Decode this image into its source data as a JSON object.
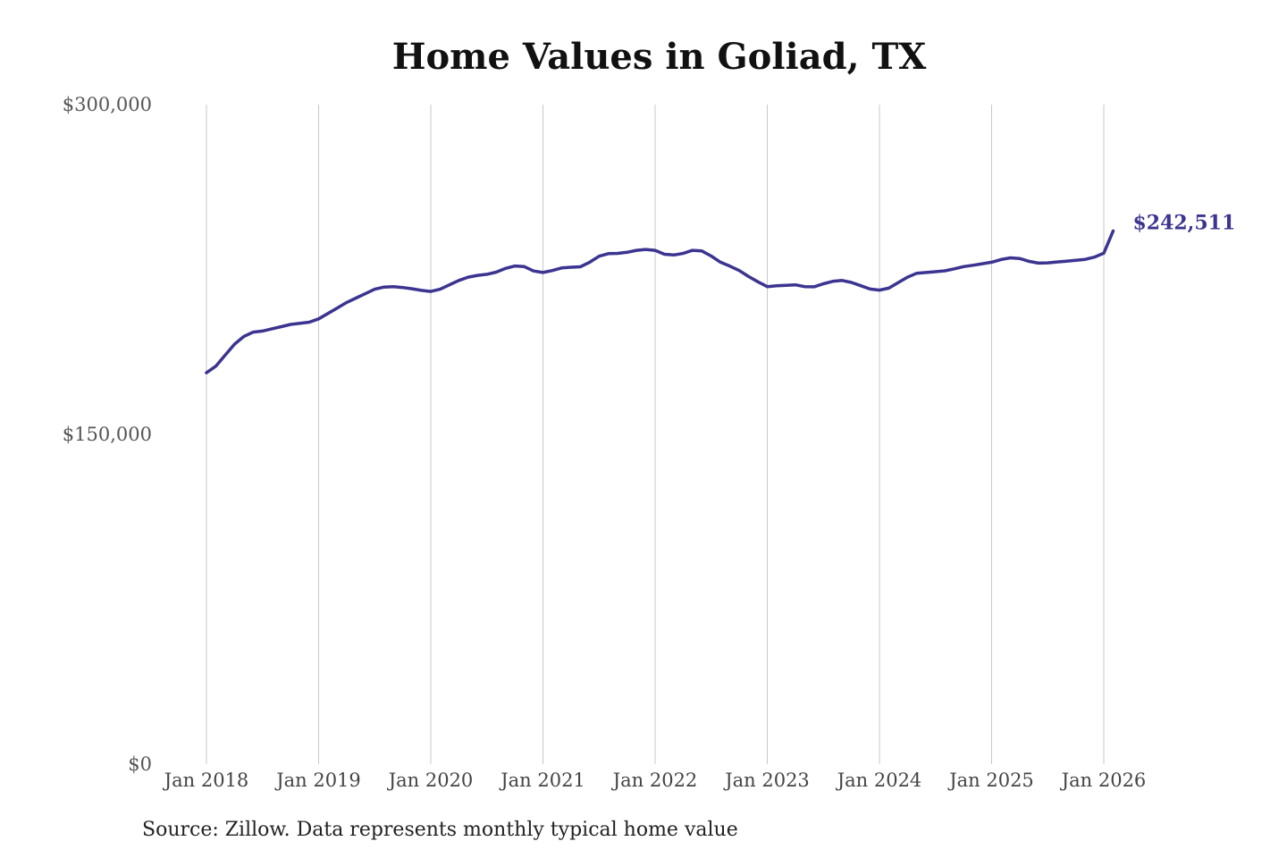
{
  "chart_data": {
    "type": "line",
    "title": "Home Values in Goliad, TX",
    "xlabel": "",
    "ylabel": "",
    "ylim": [
      0,
      300000
    ],
    "yticks": [
      0,
      150000,
      300000
    ],
    "ytick_labels": [
      "$0",
      "$150,000",
      "$300,000"
    ],
    "xlim": [
      "2018-01",
      "2026-02"
    ],
    "xticks": [
      "2018-01",
      "2019-01",
      "2020-01",
      "2021-01",
      "2022-01",
      "2023-01",
      "2024-01",
      "2025-01",
      "2026-01"
    ],
    "xtick_labels": [
      "Jan 2018",
      "Jan 2019",
      "Jan 2020",
      "Jan 2021",
      "Jan 2022",
      "Jan 2023",
      "Jan 2024",
      "Jan 2025",
      "Jan 2026"
    ],
    "grid": "vertical",
    "series": [
      {
        "color": "#3b3490",
        "end_label": "$242,511",
        "points": [
          [
            "2018-01",
            178000
          ],
          [
            "2018-02",
            181000
          ],
          [
            "2018-03",
            186000
          ],
          [
            "2018-04",
            191000
          ],
          [
            "2018-05",
            194500
          ],
          [
            "2018-06",
            196500
          ],
          [
            "2018-07",
            197000
          ],
          [
            "2018-08",
            198000
          ],
          [
            "2018-09",
            199000
          ],
          [
            "2018-10",
            200000
          ],
          [
            "2018-11",
            200500
          ],
          [
            "2018-12",
            201000
          ],
          [
            "2019-01",
            202500
          ],
          [
            "2019-02",
            205000
          ],
          [
            "2019-03",
            207500
          ],
          [
            "2019-04",
            210000
          ],
          [
            "2019-05",
            212000
          ],
          [
            "2019-06",
            214000
          ],
          [
            "2019-07",
            216000
          ],
          [
            "2019-08",
            217000
          ],
          [
            "2019-09",
            217200
          ],
          [
            "2019-10",
            216800
          ],
          [
            "2019-11",
            216200
          ],
          [
            "2019-12",
            215500
          ],
          [
            "2020-01",
            215000
          ],
          [
            "2020-02",
            216000
          ],
          [
            "2020-03",
            218000
          ],
          [
            "2020-04",
            220000
          ],
          [
            "2020-05",
            221500
          ],
          [
            "2020-06",
            222300
          ],
          [
            "2020-07",
            222800
          ],
          [
            "2020-08",
            223800
          ],
          [
            "2020-09",
            225500
          ],
          [
            "2020-10",
            226600
          ],
          [
            "2020-11",
            226300
          ],
          [
            "2020-12",
            224300
          ],
          [
            "2021-01",
            223600
          ],
          [
            "2021-02",
            224500
          ],
          [
            "2021-03",
            225700
          ],
          [
            "2021-04",
            226000
          ],
          [
            "2021-05",
            226200
          ],
          [
            "2021-06",
            228300
          ],
          [
            "2021-07",
            231000
          ],
          [
            "2021-08",
            232200
          ],
          [
            "2021-09",
            232300
          ],
          [
            "2021-10",
            232800
          ],
          [
            "2021-11",
            233700
          ],
          [
            "2021-12",
            234100
          ],
          [
            "2022-01",
            233700
          ],
          [
            "2022-02",
            231900
          ],
          [
            "2022-03",
            231600
          ],
          [
            "2022-04",
            232300
          ],
          [
            "2022-05",
            233700
          ],
          [
            "2022-06",
            233400
          ],
          [
            "2022-07",
            231100
          ],
          [
            "2022-08",
            228300
          ],
          [
            "2022-09",
            226500
          ],
          [
            "2022-10",
            224500
          ],
          [
            "2022-11",
            221800
          ],
          [
            "2022-12",
            219400
          ],
          [
            "2023-01",
            217200
          ],
          [
            "2023-02",
            217600
          ],
          [
            "2023-03",
            217800
          ],
          [
            "2023-04",
            218000
          ],
          [
            "2023-05",
            217200
          ],
          [
            "2023-06",
            217100
          ],
          [
            "2023-07",
            218500
          ],
          [
            "2023-08",
            219600
          ],
          [
            "2023-09",
            220000
          ],
          [
            "2023-10",
            219100
          ],
          [
            "2023-11",
            217600
          ],
          [
            "2023-12",
            216100
          ],
          [
            "2024-01",
            215600
          ],
          [
            "2024-02",
            216500
          ],
          [
            "2024-03",
            219000
          ],
          [
            "2024-04",
            221500
          ],
          [
            "2024-05",
            223300
          ],
          [
            "2024-06",
            223600
          ],
          [
            "2024-07",
            224000
          ],
          [
            "2024-08",
            224400
          ],
          [
            "2024-09",
            225300
          ],
          [
            "2024-10",
            226300
          ],
          [
            "2024-11",
            226900
          ],
          [
            "2024-12",
            227600
          ],
          [
            "2025-01",
            228300
          ],
          [
            "2025-02",
            229500
          ],
          [
            "2025-03",
            230300
          ],
          [
            "2025-04",
            230000
          ],
          [
            "2025-05",
            228700
          ],
          [
            "2025-06",
            227900
          ],
          [
            "2025-07",
            228000
          ],
          [
            "2025-08",
            228400
          ],
          [
            "2025-09",
            228800
          ],
          [
            "2025-10",
            229200
          ],
          [
            "2025-11",
            229600
          ],
          [
            "2025-12",
            230600
          ],
          [
            "2026-01",
            232400
          ],
          [
            "2026-02",
            242511
          ]
        ]
      }
    ]
  },
  "source_note": "Source: Zillow. Data represents monthly typical home value"
}
